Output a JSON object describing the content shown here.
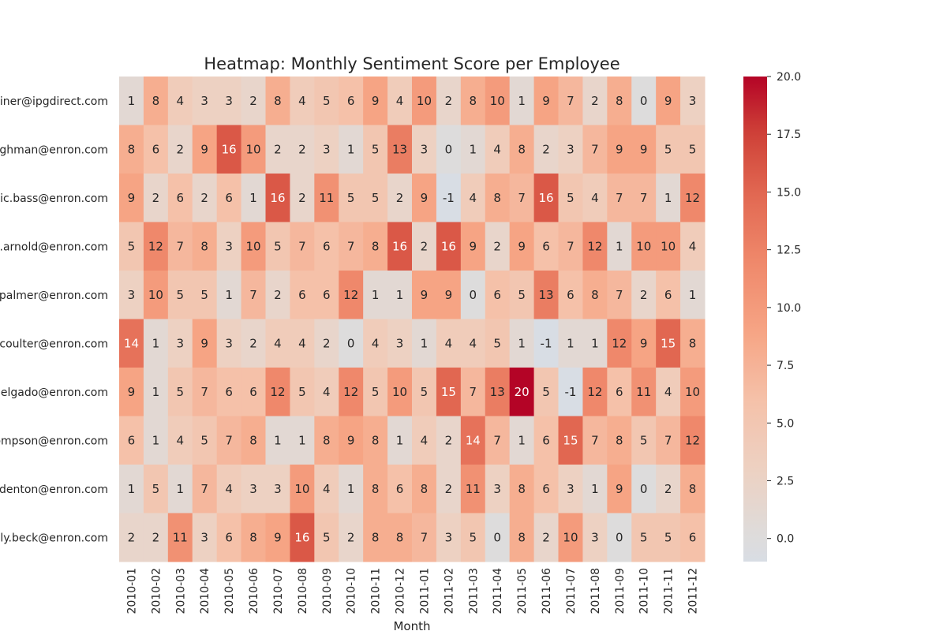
{
  "chart_data": {
    "type": "heatmap",
    "title": "Heatmap: Monthly Sentiment Score per Employee",
    "xlabel": "Month",
    "ylabel": "",
    "colormap": "coolwarm (center 0)",
    "colors": {
      "zero": "#dddcdc",
      "max": "#b40426",
      "text_dark": "#262626",
      "text_light": "#ffffff"
    },
    "color_range": [
      -1,
      20
    ],
    "colorbar_ticks": [
      "0.0",
      "2.5",
      "5.0",
      "7.5",
      "10.0",
      "12.5",
      "15.0",
      "17.5",
      "20.0"
    ],
    "colorbar_tick_values": [
      0,
      2.5,
      5,
      7.5,
      10,
      12.5,
      15,
      17.5,
      20
    ],
    "x_categories": [
      "2010-01",
      "2010-02",
      "2010-03",
      "2010-04",
      "2010-05",
      "2010-06",
      "2010-07",
      "2010-08",
      "2010-09",
      "2010-10",
      "2010-11",
      "2010-12",
      "2011-01",
      "2011-02",
      "2011-03",
      "2011-04",
      "2011-05",
      "2011-06",
      "2011-07",
      "2011-08",
      "2011-09",
      "2011-10",
      "2011-11",
      "2011-12"
    ],
    "y_categories": [
      "riner@ipgdirect.com",
      "ghman@enron.com",
      "ic.bass@enron.com",
      ".arnold@enron.com",
      "palmer@enron.com",
      ".coulter@enron.com",
      "delgado@enron.com",
      "ompson@enron.com",
      ".denton@enron.com",
      "lly.beck@enron.com"
    ],
    "values": [
      [
        1,
        8,
        4,
        3,
        3,
        2,
        8,
        4,
        5,
        6,
        9,
        4,
        10,
        2,
        8,
        10,
        1,
        9,
        7,
        2,
        8,
        0,
        9,
        3
      ],
      [
        8,
        6,
        2,
        9,
        16,
        10,
        2,
        2,
        3,
        1,
        5,
        13,
        3,
        0,
        1,
        4,
        8,
        2,
        3,
        7,
        9,
        9,
        5,
        5
      ],
      [
        9,
        2,
        6,
        2,
        6,
        1,
        16,
        2,
        11,
        5,
        5,
        2,
        9,
        -1,
        4,
        8,
        7,
        16,
        5,
        4,
        7,
        7,
        1,
        12
      ],
      [
        5,
        12,
        7,
        8,
        3,
        10,
        5,
        7,
        6,
        7,
        8,
        16,
        2,
        16,
        9,
        2,
        9,
        6,
        7,
        12,
        1,
        10,
        10,
        4
      ],
      [
        3,
        10,
        5,
        5,
        1,
        7,
        2,
        6,
        6,
        12,
        1,
        1,
        9,
        9,
        0,
        6,
        5,
        13,
        6,
        8,
        7,
        2,
        6,
        1
      ],
      [
        14,
        1,
        3,
        9,
        3,
        2,
        4,
        4,
        2,
        0,
        4,
        3,
        1,
        4,
        4,
        5,
        1,
        -1,
        1,
        1,
        12,
        9,
        15,
        8
      ],
      [
        9,
        1,
        5,
        7,
        6,
        6,
        12,
        5,
        4,
        12,
        5,
        10,
        5,
        15,
        7,
        13,
        20,
        5,
        -1,
        12,
        6,
        11,
        4,
        10
      ],
      [
        6,
        1,
        4,
        5,
        7,
        8,
        1,
        1,
        8,
        9,
        8,
        1,
        4,
        2,
        14,
        7,
        1,
        6,
        15,
        7,
        8,
        5,
        7,
        12
      ],
      [
        1,
        5,
        1,
        7,
        4,
        3,
        3,
        10,
        4,
        1,
        8,
        6,
        8,
        2,
        11,
        3,
        8,
        6,
        3,
        1,
        9,
        0,
        2,
        8
      ],
      [
        2,
        2,
        11,
        3,
        6,
        8,
        9,
        16,
        5,
        2,
        8,
        8,
        7,
        3,
        5,
        0,
        8,
        2,
        10,
        3,
        0,
        5,
        5,
        6
      ]
    ]
  }
}
